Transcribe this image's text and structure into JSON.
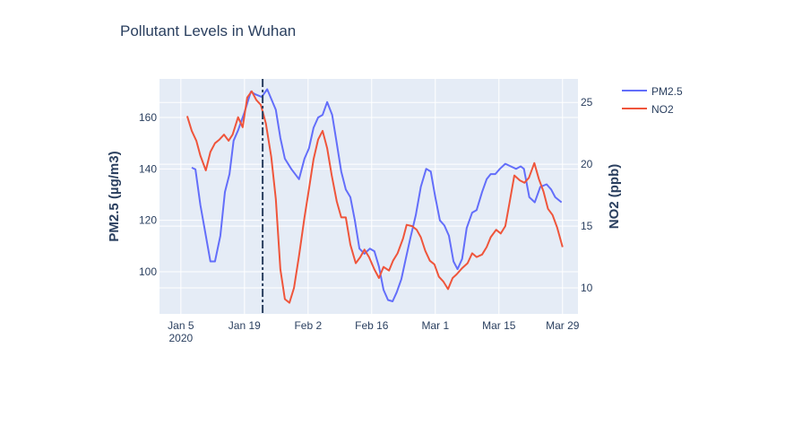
{
  "chart_data": {
    "type": "line",
    "title": "Pollutant Levels in Wuhan",
    "x_origin_date": "2020-01-05",
    "x_unit": "days since origin",
    "xlim": [
      -4.7,
      87.4
    ],
    "x_ticks": [
      {
        "day": 0,
        "label": "Jan 5",
        "sublabel": "2020"
      },
      {
        "day": 14,
        "label": "Jan 19"
      },
      {
        "day": 28,
        "label": "Feb 2"
      },
      {
        "day": 42,
        "label": "Feb 16"
      },
      {
        "day": 56,
        "label": "Mar 1"
      },
      {
        "day": 70,
        "label": "Mar 15"
      },
      {
        "day": 84,
        "label": "Mar 29"
      }
    ],
    "y_left": {
      "label": "PM2.5 (µg/m3)",
      "range": [
        83.6,
        175
      ],
      "ticks": [
        100,
        120,
        140,
        160
      ]
    },
    "y_right": {
      "label": "NO2 (ppb)",
      "range": [
        7.9,
        26.9
      ],
      "ticks": [
        10,
        15,
        20,
        25
      ]
    },
    "vline": {
      "day": 18,
      "style": "dashdot",
      "color": "#2a3f5f"
    },
    "legend_position": "top-right outside",
    "series": [
      {
        "name": "PM2.5",
        "axis": "left",
        "color": "#636efa",
        "x": [
          2.4,
          3.2,
          4.3,
          6.5,
          7.5,
          8.7,
          9.7,
          10.7,
          11.6,
          12.6,
          14,
          15.4,
          16.4,
          17.8,
          19,
          20.9,
          21.9,
          22.9,
          24.3,
          26,
          27.2,
          28.2,
          29.2,
          30.2,
          31.2,
          32.2,
          33.3,
          34.3,
          35.3,
          36.3,
          37.3,
          38.3,
          39.3,
          40.4,
          41.6,
          42.6,
          43.6,
          44.6,
          45.6,
          46.6,
          47.5,
          48.5,
          49.5,
          50.5,
          51.7,
          52.8,
          54,
          55,
          56,
          57,
          58,
          59,
          60,
          60.9,
          61.9,
          62.9,
          64.1,
          65.1,
          66.3,
          67.3,
          68.2,
          69.2,
          70.2,
          71.4,
          72.6,
          73.8,
          74.8,
          75.5,
          76.7,
          77.9,
          79.1,
          80.5,
          81.5,
          82.4,
          83.8
        ],
        "y": [
          140.5,
          139.8,
          126,
          104,
          104,
          114,
          131,
          138,
          151,
          155,
          162,
          170,
          169,
          168,
          171,
          163,
          152,
          144,
          140,
          136,
          144,
          148,
          156,
          160,
          161,
          166,
          161,
          150,
          139,
          132,
          129,
          120,
          109,
          107,
          109,
          108,
          102,
          93,
          89,
          88.5,
          92,
          97,
          105,
          113,
          122,
          133,
          140,
          139,
          129,
          120,
          118,
          114,
          104,
          101,
          105,
          117,
          123,
          124,
          131,
          136,
          138,
          138,
          140,
          142,
          141,
          140,
          141,
          140,
          129,
          127,
          133,
          134,
          132,
          129,
          127
        ]
      },
      {
        "name": "NO2",
        "axis": "right",
        "color": "#ef553b",
        "x": [
          1.4,
          2.4,
          3.4,
          4.3,
          5.5,
          6.5,
          7.5,
          8.5,
          9.5,
          10.5,
          11.4,
          12.6,
          13.6,
          14.6,
          15.6,
          16.6,
          17.6,
          18.7,
          19.9,
          20.9,
          21.9,
          22.9,
          23.9,
          24.9,
          26,
          27.2,
          28.2,
          29.2,
          30.2,
          31.2,
          32.2,
          33.2,
          34.3,
          35.3,
          36.3,
          37.3,
          38.5,
          39.5,
          40.4,
          41.4,
          42.6,
          43.6,
          44.6,
          45.8,
          46.7,
          47.7,
          48.9,
          49.7,
          50.9,
          51.9,
          52.8,
          53.8,
          54.8,
          55.8,
          56.8,
          57.8,
          58.8,
          59.8,
          60.7,
          61.9,
          63.1,
          64.1,
          65.1,
          66.3,
          67.3,
          68.2,
          69.4,
          70.4,
          71.4,
          72.4,
          73.4,
          74.6,
          75.6,
          76.6,
          77.8,
          78.8,
          79.8,
          80.8,
          81.8,
          82.8,
          84
        ],
        "y": [
          23.9,
          22.7,
          21.9,
          20.7,
          19.5,
          21,
          21.7,
          22,
          22.4,
          21.9,
          22.4,
          23.8,
          23,
          25.4,
          25.9,
          25.2,
          24.8,
          23.3,
          20.6,
          17.2,
          11.5,
          9.1,
          8.8,
          10,
          12.6,
          15.7,
          18,
          20.4,
          22,
          22.7,
          21.3,
          19.1,
          17,
          15.7,
          15.7,
          13.5,
          12,
          12.5,
          13.1,
          12.5,
          11.5,
          10.8,
          11.7,
          11.4,
          12.2,
          12.8,
          14,
          15.1,
          15,
          14.7,
          14.1,
          13,
          12.2,
          11.9,
          10.9,
          10.5,
          9.9,
          10.8,
          11.1,
          11.6,
          12,
          12.8,
          12.5,
          12.7,
          13.3,
          14.1,
          14.7,
          14.4,
          15,
          17,
          19.1,
          18.7,
          18.5,
          18.9,
          20.1,
          18.8,
          17.8,
          16.4,
          15.9,
          14.9,
          13.3
        ]
      }
    ]
  }
}
